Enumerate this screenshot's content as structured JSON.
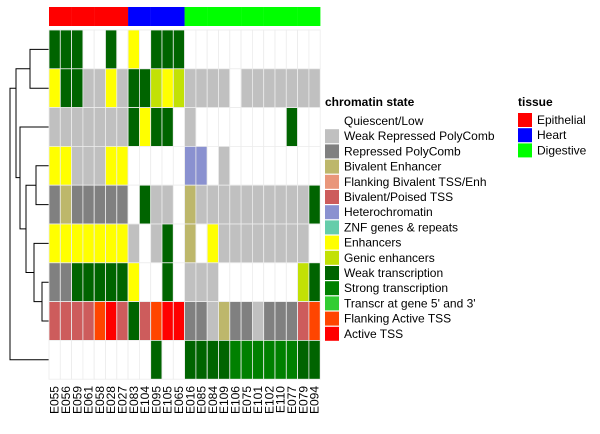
{
  "chart_data": {
    "type": "heatmap",
    "samples": [
      "E055",
      "E056",
      "E059",
      "E061",
      "E058",
      "E028",
      "E027",
      "E083",
      "E104",
      "E095",
      "E105",
      "E065",
      "E016",
      "E085",
      "E084",
      "E109",
      "E106",
      "E075",
      "E101",
      "E102",
      "E110",
      "E077",
      "E079",
      "E094"
    ],
    "tissue_annotation": [
      "Epithelial",
      "Epithelial",
      "Epithelial",
      "Epithelial",
      "Epithelial",
      "Epithelial",
      "Epithelial",
      "Heart",
      "Heart",
      "Heart",
      "Heart",
      "Heart",
      "Digestive",
      "Digestive",
      "Digestive",
      "Digestive",
      "Digestive",
      "Digestive",
      "Digestive",
      "Digestive",
      "Digestive",
      "Digestive",
      "Digestive",
      "Digestive"
    ],
    "rows": [
      [
        "Weak transcription",
        "Weak transcription",
        "Weak transcription",
        "Quiescent/Low",
        "Quiescent/Low",
        "Weak transcription",
        "Quiescent/Low",
        "Enhancers",
        "Quiescent/Low",
        "Weak transcription",
        "Weak transcription",
        "Weak transcription",
        "Quiescent/Low",
        "Quiescent/Low",
        "Quiescent/Low",
        "Quiescent/Low",
        "Quiescent/Low",
        "Quiescent/Low",
        "Quiescent/Low",
        "Quiescent/Low",
        "Quiescent/Low",
        "Quiescent/Low",
        "Quiescent/Low",
        "Quiescent/Low"
      ],
      [
        "Enhancers",
        "Weak transcription",
        "Weak transcription",
        "Weak Repressed PolyComb",
        "Weak Repressed PolyComb",
        "Enhancers",
        "Weak Repressed PolyComb",
        "Weak transcription",
        "Weak transcription",
        "Genic enhancers",
        "Enhancers",
        "Genic enhancers",
        "Weak Repressed PolyComb",
        "Weak Repressed PolyComb",
        "Weak Repressed PolyComb",
        "Weak Repressed PolyComb",
        "Quiescent/Low",
        "Weak Repressed PolyComb",
        "Weak Repressed PolyComb",
        "Weak Repressed PolyComb",
        "Weak Repressed PolyComb",
        "Weak Repressed PolyComb",
        "Weak Repressed PolyComb",
        "Weak Repressed PolyComb"
      ],
      [
        "Weak Repressed PolyComb",
        "Weak Repressed PolyComb",
        "Weak Repressed PolyComb",
        "Weak Repressed PolyComb",
        "Weak Repressed PolyComb",
        "Weak Repressed PolyComb",
        "Weak Repressed PolyComb",
        "Weak transcription",
        "Enhancers",
        "Weak transcription",
        "Weak transcription",
        "Quiescent/Low",
        "Weak Repressed PolyComb",
        "Quiescent/Low",
        "Quiescent/Low",
        "Quiescent/Low",
        "Quiescent/Low",
        "Quiescent/Low",
        "Quiescent/Low",
        "Quiescent/Low",
        "Quiescent/Low",
        "Weak transcription",
        "Quiescent/Low",
        "Quiescent/Low"
      ],
      [
        "Enhancers",
        "Enhancers",
        "Weak Repressed PolyComb",
        "Weak Repressed PolyComb",
        "Weak Repressed PolyComb",
        "Enhancers",
        "Enhancers",
        "Quiescent/Low",
        "Quiescent/Low",
        "Quiescent/Low",
        "Quiescent/Low",
        "Quiescent/Low",
        "Heterochromatin",
        "Heterochromatin",
        "Quiescent/Low",
        "Weak Repressed PolyComb",
        "Quiescent/Low",
        "Quiescent/Low",
        "Quiescent/Low",
        "Quiescent/Low",
        "Quiescent/Low",
        "Quiescent/Low",
        "Quiescent/Low",
        "Quiescent/Low"
      ],
      [
        "Repressed PolyComb",
        "Bivalent Enhancer",
        "Repressed PolyComb",
        "Repressed PolyComb",
        "Repressed PolyComb",
        "Repressed PolyComb",
        "Repressed PolyComb",
        "Quiescent/Low",
        "Weak transcription",
        "Weak Repressed PolyComb",
        "Weak Repressed PolyComb",
        "Quiescent/Low",
        "Bivalent Enhancer",
        "Weak Repressed PolyComb",
        "Weak Repressed PolyComb",
        "Weak Repressed PolyComb",
        "Weak Repressed PolyComb",
        "Weak Repressed PolyComb",
        "Weak Repressed PolyComb",
        "Weak Repressed PolyComb",
        "Weak Repressed PolyComb",
        "Weak Repressed PolyComb",
        "Weak Repressed PolyComb",
        "Weak transcription"
      ],
      [
        "Enhancers",
        "Enhancers",
        "Enhancers",
        "Enhancers",
        "Enhancers",
        "Enhancers",
        "Enhancers",
        "Weak Repressed PolyComb",
        "Quiescent/Low",
        "Weak Repressed PolyComb",
        "Weak transcription",
        "Quiescent/Low",
        "Bivalent Enhancer",
        "Quiescent/Low",
        "Enhancers",
        "Weak Repressed PolyComb",
        "Weak Repressed PolyComb",
        "Weak Repressed PolyComb",
        "Weak Repressed PolyComb",
        "Weak Repressed PolyComb",
        "Weak Repressed PolyComb",
        "Weak Repressed PolyComb",
        "Weak Repressed PolyComb",
        "Quiescent/Low"
      ],
      [
        "Repressed PolyComb",
        "Repressed PolyComb",
        "Weak transcription",
        "Weak transcription",
        "Weak transcription",
        "Weak transcription",
        "Weak transcription",
        "Enhancers",
        "Quiescent/Low",
        "Quiescent/Low",
        "Weak transcription",
        "Quiescent/Low",
        "Weak Repressed PolyComb",
        "Weak Repressed PolyComb",
        "Weak Repressed PolyComb",
        "Quiescent/Low",
        "Quiescent/Low",
        "Quiescent/Low",
        "Quiescent/Low",
        "Quiescent/Low",
        "Quiescent/Low",
        "Quiescent/Low",
        "Genic enhancers",
        "Weak transcription"
      ],
      [
        "Bivalent/Poised TSS",
        "Bivalent/Poised TSS",
        "Bivalent/Poised TSS",
        "Bivalent/Poised TSS",
        "Flanking Active TSS",
        "Active TSS",
        "Bivalent/Poised TSS",
        "Weak transcription",
        "Bivalent/Poised TSS",
        "Flanking Active TSS",
        "Active TSS",
        "Active TSS",
        "Repressed PolyComb",
        "Repressed PolyComb",
        "Weak Repressed PolyComb",
        "Bivalent Enhancer",
        "Repressed PolyComb",
        "Repressed PolyComb",
        "Weak Repressed PolyComb",
        "Repressed PolyComb",
        "Repressed PolyComb",
        "Repressed PolyComb",
        "Bivalent/Poised TSS",
        "Flanking Active TSS"
      ],
      [
        "Quiescent/Low",
        "Quiescent/Low",
        "Quiescent/Low",
        "Quiescent/Low",
        "Quiescent/Low",
        "Quiescent/Low",
        "Quiescent/Low",
        "Quiescent/Low",
        "Quiescent/Low",
        "Weak transcription",
        "Quiescent/Low",
        "Quiescent/Low",
        "Weak transcription",
        "Weak transcription",
        "Weak transcription",
        "Weak transcription",
        "Strong transcription",
        "Strong transcription",
        "Strong transcription",
        "Strong transcription",
        "Strong transcription",
        "Strong transcription",
        "Weak transcription",
        "Weak transcription"
      ]
    ],
    "legend_chromatin": {
      "title": "chromatin state",
      "entries": [
        {
          "label": "Quiescent/Low",
          "color": "#FFFFFF"
        },
        {
          "label": "Weak Repressed PolyComb",
          "color": "#C0C0C0"
        },
        {
          "label": "Repressed PolyComb",
          "color": "#808080"
        },
        {
          "label": "Bivalent Enhancer",
          "color": "#BDB76B"
        },
        {
          "label": "Flanking Bivalent TSS/Enh",
          "color": "#E9967A"
        },
        {
          "label": "Bivalent/Poised TSS",
          "color": "#CD5C5C"
        },
        {
          "label": "Heterochromatin",
          "color": "#8A91D0"
        },
        {
          "label": "ZNF genes & repeats",
          "color": "#66CDAA"
        },
        {
          "label": "Enhancers",
          "color": "#FFFF00"
        },
        {
          "label": "Genic enhancers",
          "color": "#C2E105"
        },
        {
          "label": "Weak transcription",
          "color": "#006400"
        },
        {
          "label": "Strong transcription",
          "color": "#008000"
        },
        {
          "label": "Transcr at gene 5' and 3'",
          "color": "#32CD32"
        },
        {
          "label": "Flanking Active TSS",
          "color": "#FF4500"
        },
        {
          "label": "Active TSS",
          "color": "#FF0000"
        }
      ]
    },
    "legend_tissue": {
      "title": "tissue",
      "entries": [
        {
          "label": "Epithelial",
          "color": "#FF0000"
        },
        {
          "label": "Heart",
          "color": "#0000FF"
        },
        {
          "label": "Digestive",
          "color": "#00FF00"
        }
      ]
    }
  }
}
